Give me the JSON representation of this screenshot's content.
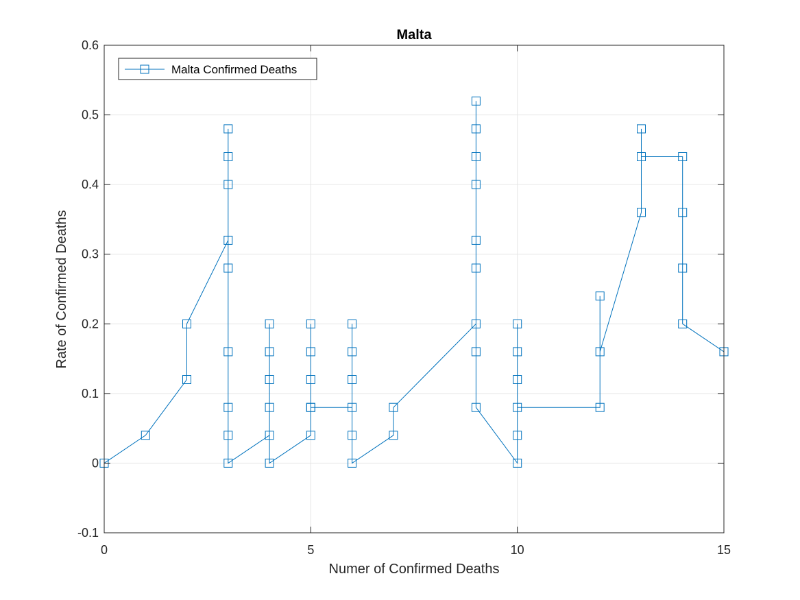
{
  "chart_data": {
    "type": "line",
    "title": "Malta",
    "xlabel": "Numer of Confirmed Deaths",
    "ylabel": "Rate of Confirmed Deaths",
    "xlim": [
      0,
      15
    ],
    "ylim": [
      -0.1,
      0.6
    ],
    "xticks": [
      0,
      5,
      10,
      15
    ],
    "xtick_labels": [
      "0",
      "5",
      "10",
      "15"
    ],
    "yticks": [
      -0.1,
      0,
      0.1,
      0.2,
      0.3,
      0.4,
      0.5,
      0.6
    ],
    "ytick_labels": [
      "-0.1",
      "0",
      "0.1",
      "0.2",
      "0.3",
      "0.4",
      "0.5",
      "0.6"
    ],
    "grid": true,
    "legend_position": "top-left",
    "marker": "square",
    "color": "#0072BD",
    "series": [
      {
        "name": "Malta Confirmed Deaths",
        "x": [
          0,
          1,
          2,
          2,
          3,
          3,
          3,
          3,
          3,
          3,
          3,
          3,
          3,
          4,
          4,
          4,
          4,
          4,
          4,
          5,
          5,
          5,
          5,
          5,
          5,
          6,
          6,
          6,
          6,
          6,
          6,
          7,
          7,
          9,
          9,
          9,
          9,
          9,
          9,
          9,
          9,
          9,
          10,
          10,
          10,
          10,
          10,
          10,
          12,
          12,
          12,
          13,
          13,
          13,
          14,
          14,
          14,
          14,
          15
        ],
        "y": [
          0,
          0.04,
          0.12,
          0.2,
          0.32,
          0.48,
          0.44,
          0.4,
          0.28,
          0.16,
          0.08,
          0.04,
          0,
          0.04,
          0.2,
          0.16,
          0.12,
          0.08,
          0,
          0.04,
          0.2,
          0.16,
          0.12,
          0.08,
          0.08,
          0.08,
          0.2,
          0.16,
          0.12,
          0.04,
          0,
          0.04,
          0.08,
          0.2,
          0.52,
          0.48,
          0.44,
          0.4,
          0.32,
          0.28,
          0.16,
          0.08,
          0,
          0.04,
          0.2,
          0.16,
          0.12,
          0.08,
          0.08,
          0.24,
          0.16,
          0.36,
          0.48,
          0.44,
          0.44,
          0.36,
          0.28,
          0.2,
          0.16
        ]
      }
    ]
  }
}
